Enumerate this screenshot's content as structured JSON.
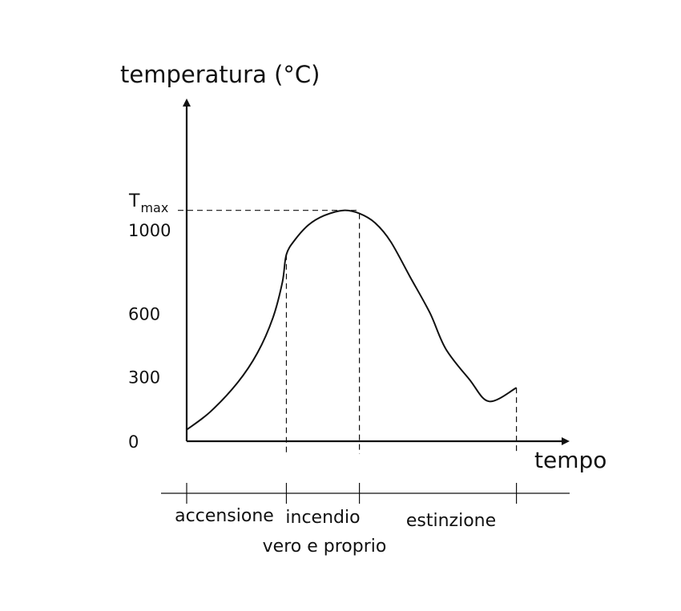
{
  "chart_data": {
    "type": "line",
    "ylabel": "temperatura (°C)",
    "xlabel": "tempo",
    "y_ticks": [
      "0",
      "300",
      "600",
      "1000"
    ],
    "y_tick_values": [
      0,
      300,
      600,
      1000
    ],
    "tmax_label": {
      "base": "T",
      "sub": "max"
    },
    "tmax_value": 1100,
    "series": [
      {
        "x": [
          0,
          0.3,
          0.65,
          0.9,
          1.1,
          1.22,
          1.27,
          1.38,
          1.55,
          1.75,
          2.0,
          2.2,
          2.4,
          2.6,
          2.85,
          3.1,
          3.3,
          3.6,
          3.85,
          4.2
        ],
        "values": [
          55,
          140,
          280,
          420,
          590,
          760,
          890,
          960,
          1030,
          1075,
          1100,
          1085,
          1040,
          950,
          780,
          610,
          440,
          295,
          190,
          255
        ]
      }
    ],
    "phase_boundaries": [
      0,
      1.27,
      2.2,
      4.2
    ],
    "phases": [
      {
        "label": "accensione"
      },
      {
        "label": "incendio",
        "label2": "vero e proprio"
      },
      {
        "label": "estinzione"
      }
    ],
    "grid": false,
    "legend": "none"
  },
  "colors": {
    "ink": "#111111",
    "background": "#ffffff"
  }
}
